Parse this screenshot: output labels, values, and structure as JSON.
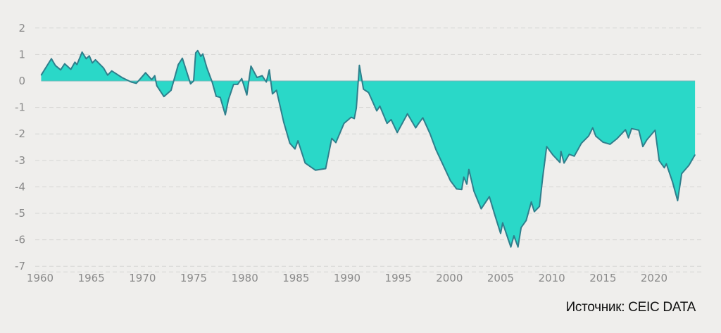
{
  "chart_data": {
    "type": "area",
    "title": "",
    "xlabel": "",
    "ylabel": "",
    "xlim": [
      1960,
      2024
    ],
    "ylim": [
      -7,
      2
    ],
    "grid": true,
    "x_ticks": [
      "1960",
      "1965",
      "1970",
      "1975",
      "1980",
      "1985",
      "1990",
      "1995",
      "2000",
      "2005",
      "2010",
      "2015",
      "2020"
    ],
    "y_ticks": [
      "2",
      "1",
      "0",
      "-1",
      "-2",
      "-3",
      "-4",
      "-5",
      "-6",
      "-7"
    ],
    "colors": {
      "fill": "#2ad8c8",
      "line": "#2f7f8c"
    },
    "series": [
      {
        "name": "value",
        "points": [
          [
            1960.1,
            0.22
          ],
          [
            1961.1,
            0.84
          ],
          [
            1961.5,
            0.58
          ],
          [
            1962.0,
            0.42
          ],
          [
            1962.4,
            0.65
          ],
          [
            1963.0,
            0.44
          ],
          [
            1963.4,
            0.71
          ],
          [
            1963.6,
            0.62
          ],
          [
            1964.1,
            1.09
          ],
          [
            1964.5,
            0.84
          ],
          [
            1964.8,
            0.95
          ],
          [
            1965.1,
            0.68
          ],
          [
            1965.4,
            0.8
          ],
          [
            1966.2,
            0.49
          ],
          [
            1966.6,
            0.22
          ],
          [
            1967.0,
            0.38
          ],
          [
            1968.0,
            0.13
          ],
          [
            1968.9,
            -0.04
          ],
          [
            1969.4,
            -0.09
          ],
          [
            1970.3,
            0.31
          ],
          [
            1970.9,
            0.05
          ],
          [
            1971.2,
            0.2
          ],
          [
            1971.4,
            -0.18
          ],
          [
            1972.1,
            -0.59
          ],
          [
            1972.8,
            -0.35
          ],
          [
            1973.5,
            0.62
          ],
          [
            1973.9,
            0.86
          ],
          [
            1974.7,
            -0.11
          ],
          [
            1975.0,
            0.0
          ],
          [
            1975.2,
            1.06
          ],
          [
            1975.4,
            1.15
          ],
          [
            1975.7,
            0.93
          ],
          [
            1975.9,
            1.02
          ],
          [
            1976.3,
            0.49
          ],
          [
            1976.8,
            -0.03
          ],
          [
            1977.2,
            -0.58
          ],
          [
            1977.6,
            -0.62
          ],
          [
            1978.1,
            -1.28
          ],
          [
            1978.4,
            -0.71
          ],
          [
            1978.9,
            -0.13
          ],
          [
            1979.3,
            -0.13
          ],
          [
            1979.7,
            0.09
          ],
          [
            1980.2,
            -0.53
          ],
          [
            1980.6,
            0.56
          ],
          [
            1981.2,
            0.13
          ],
          [
            1981.7,
            0.2
          ],
          [
            1982.1,
            -0.04
          ],
          [
            1982.4,
            0.42
          ],
          [
            1982.7,
            -0.49
          ],
          [
            1983.1,
            -0.35
          ],
          [
            1983.8,
            -1.55
          ],
          [
            1984.4,
            -2.35
          ],
          [
            1984.9,
            -2.57
          ],
          [
            1985.2,
            -2.26
          ],
          [
            1985.9,
            -3.1
          ],
          [
            1986.9,
            -3.37
          ],
          [
            1987.9,
            -3.31
          ],
          [
            1988.5,
            -2.17
          ],
          [
            1988.9,
            -2.33
          ],
          [
            1989.7,
            -1.6
          ],
          [
            1990.4,
            -1.37
          ],
          [
            1990.7,
            -1.42
          ],
          [
            1990.9,
            -1.02
          ],
          [
            1991.2,
            0.59
          ],
          [
            1991.6,
            -0.31
          ],
          [
            1992.1,
            -0.44
          ],
          [
            1992.9,
            -1.13
          ],
          [
            1993.2,
            -0.95
          ],
          [
            1993.9,
            -1.6
          ],
          [
            1994.3,
            -1.46
          ],
          [
            1994.9,
            -1.95
          ],
          [
            1995.9,
            -1.24
          ],
          [
            1996.7,
            -1.77
          ],
          [
            1997.0,
            -1.6
          ],
          [
            1997.4,
            -1.39
          ],
          [
            1998.1,
            -1.99
          ],
          [
            1998.7,
            -2.61
          ],
          [
            2000.1,
            -3.77
          ],
          [
            2000.7,
            -4.08
          ],
          [
            2001.2,
            -4.1
          ],
          [
            2001.4,
            -3.63
          ],
          [
            2001.7,
            -3.9
          ],
          [
            2001.9,
            -3.34
          ],
          [
            2002.4,
            -4.17
          ],
          [
            2003.1,
            -4.83
          ],
          [
            2003.9,
            -4.37
          ],
          [
            2004.5,
            -5.14
          ],
          [
            2005.0,
            -5.76
          ],
          [
            2005.2,
            -5.36
          ],
          [
            2006.0,
            -6.27
          ],
          [
            2006.3,
            -5.85
          ],
          [
            2006.7,
            -6.27
          ],
          [
            2007.0,
            -5.54
          ],
          [
            2007.5,
            -5.27
          ],
          [
            2008.0,
            -4.57
          ],
          [
            2008.3,
            -4.94
          ],
          [
            2008.8,
            -4.74
          ],
          [
            2009.1,
            -3.68
          ],
          [
            2009.5,
            -2.48
          ],
          [
            2010.1,
            -2.79
          ],
          [
            2010.8,
            -3.08
          ],
          [
            2010.9,
            -2.66
          ],
          [
            2011.2,
            -3.1
          ],
          [
            2011.7,
            -2.77
          ],
          [
            2012.2,
            -2.84
          ],
          [
            2012.9,
            -2.35
          ],
          [
            2013.6,
            -2.08
          ],
          [
            2014.0,
            -1.77
          ],
          [
            2014.3,
            -2.08
          ],
          [
            2015.0,
            -2.31
          ],
          [
            2015.7,
            -2.39
          ],
          [
            2016.4,
            -2.17
          ],
          [
            2017.2,
            -1.84
          ],
          [
            2017.5,
            -2.15
          ],
          [
            2017.8,
            -1.8
          ],
          [
            2018.5,
            -1.86
          ],
          [
            2018.9,
            -2.48
          ],
          [
            2019.3,
            -2.22
          ],
          [
            2020.1,
            -1.86
          ],
          [
            2020.5,
            -3.01
          ],
          [
            2021.0,
            -3.28
          ],
          [
            2021.2,
            -3.13
          ],
          [
            2021.8,
            -3.81
          ],
          [
            2022.3,
            -4.52
          ],
          [
            2022.7,
            -3.5
          ],
          [
            2023.4,
            -3.19
          ],
          [
            2024.0,
            -2.79
          ]
        ]
      }
    ]
  },
  "source": "Источник: CEIC DATA"
}
